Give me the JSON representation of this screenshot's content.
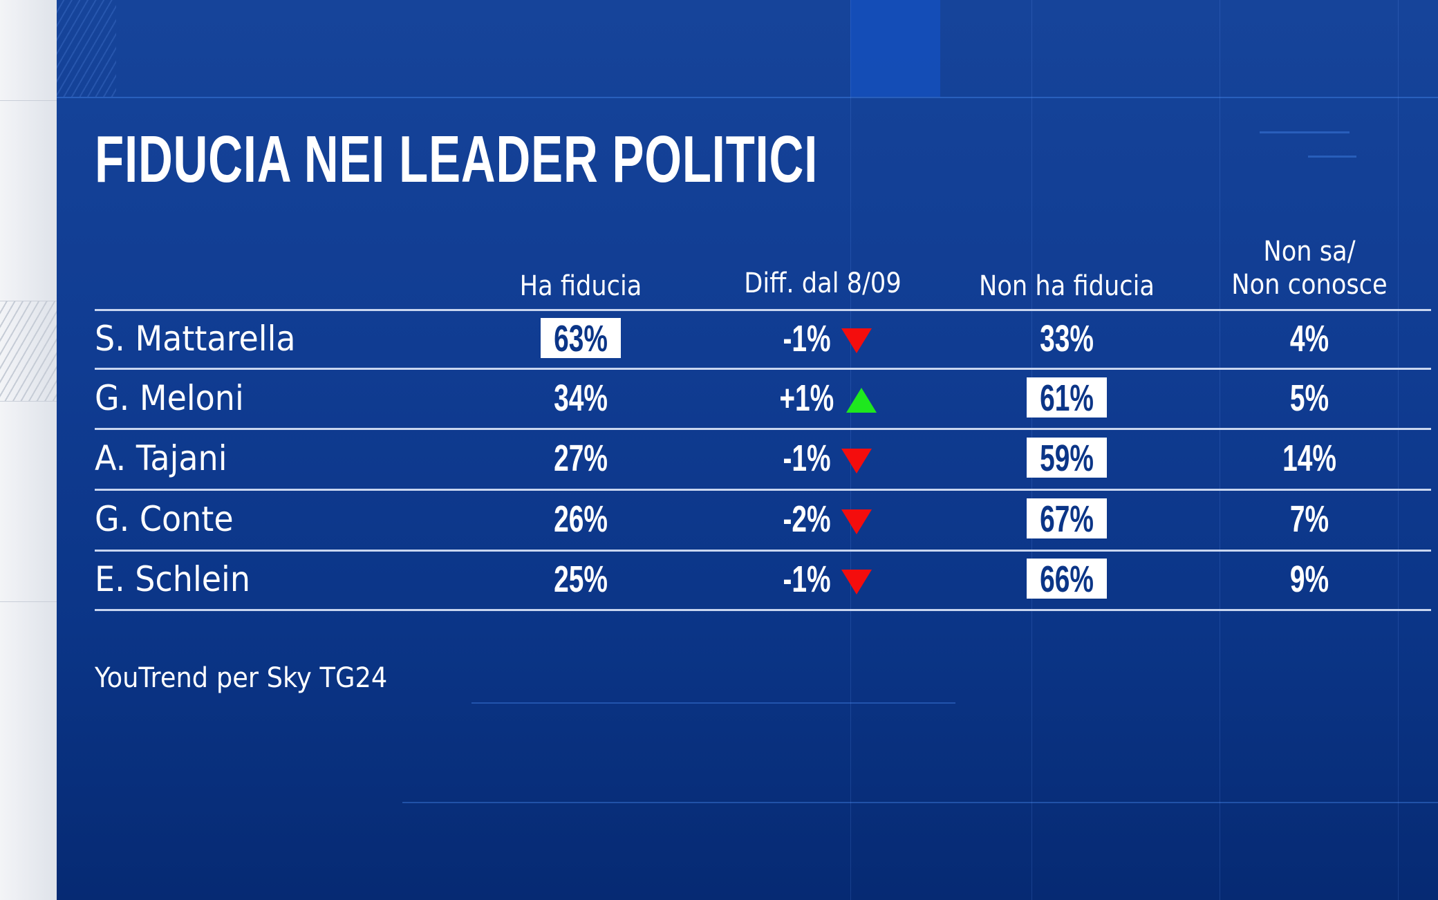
{
  "chart_data": {
    "type": "table",
    "title": "FIDUCIA NEI LEADER POLITICI",
    "columns": [
      "Ha fiducia",
      "Diff. dal 8/09",
      "Non ha fiducia",
      "Non sa/ Non conosce"
    ],
    "column_lines": {
      "c3a": "Non sa/",
      "c3b": "Non conosce"
    },
    "rows": [
      {
        "name": "S. Mattarella",
        "ha_fiducia": "63%",
        "diff": "-1%",
        "trend": "down",
        "non_ha_fiducia": "33%",
        "non_sa": "4%",
        "highlight": "ha_fiducia"
      },
      {
        "name": "G. Meloni",
        "ha_fiducia": "34%",
        "diff": "+1%",
        "trend": "up",
        "non_ha_fiducia": "61%",
        "non_sa": "5%",
        "highlight": "non_ha_fiducia"
      },
      {
        "name": "A. Tajani",
        "ha_fiducia": "27%",
        "diff": "-1%",
        "trend": "down",
        "non_ha_fiducia": "59%",
        "non_sa": "14%",
        "highlight": "non_ha_fiducia"
      },
      {
        "name": "G. Conte",
        "ha_fiducia": "26%",
        "diff": "-2%",
        "trend": "down",
        "non_ha_fiducia": "67%",
        "non_sa": "7%",
        "highlight": "non_ha_fiducia"
      },
      {
        "name": "E. Schlein",
        "ha_fiducia": "25%",
        "diff": "-1%",
        "trend": "down",
        "non_ha_fiducia": "66%",
        "non_sa": "9%",
        "highlight": "non_ha_fiducia"
      }
    ],
    "source": "YouTrend per Sky TG24"
  },
  "colors": {
    "background": "#0b3587",
    "up": "#1ee81e",
    "down": "#f40d0d",
    "highlight_box": "#ffffff"
  }
}
